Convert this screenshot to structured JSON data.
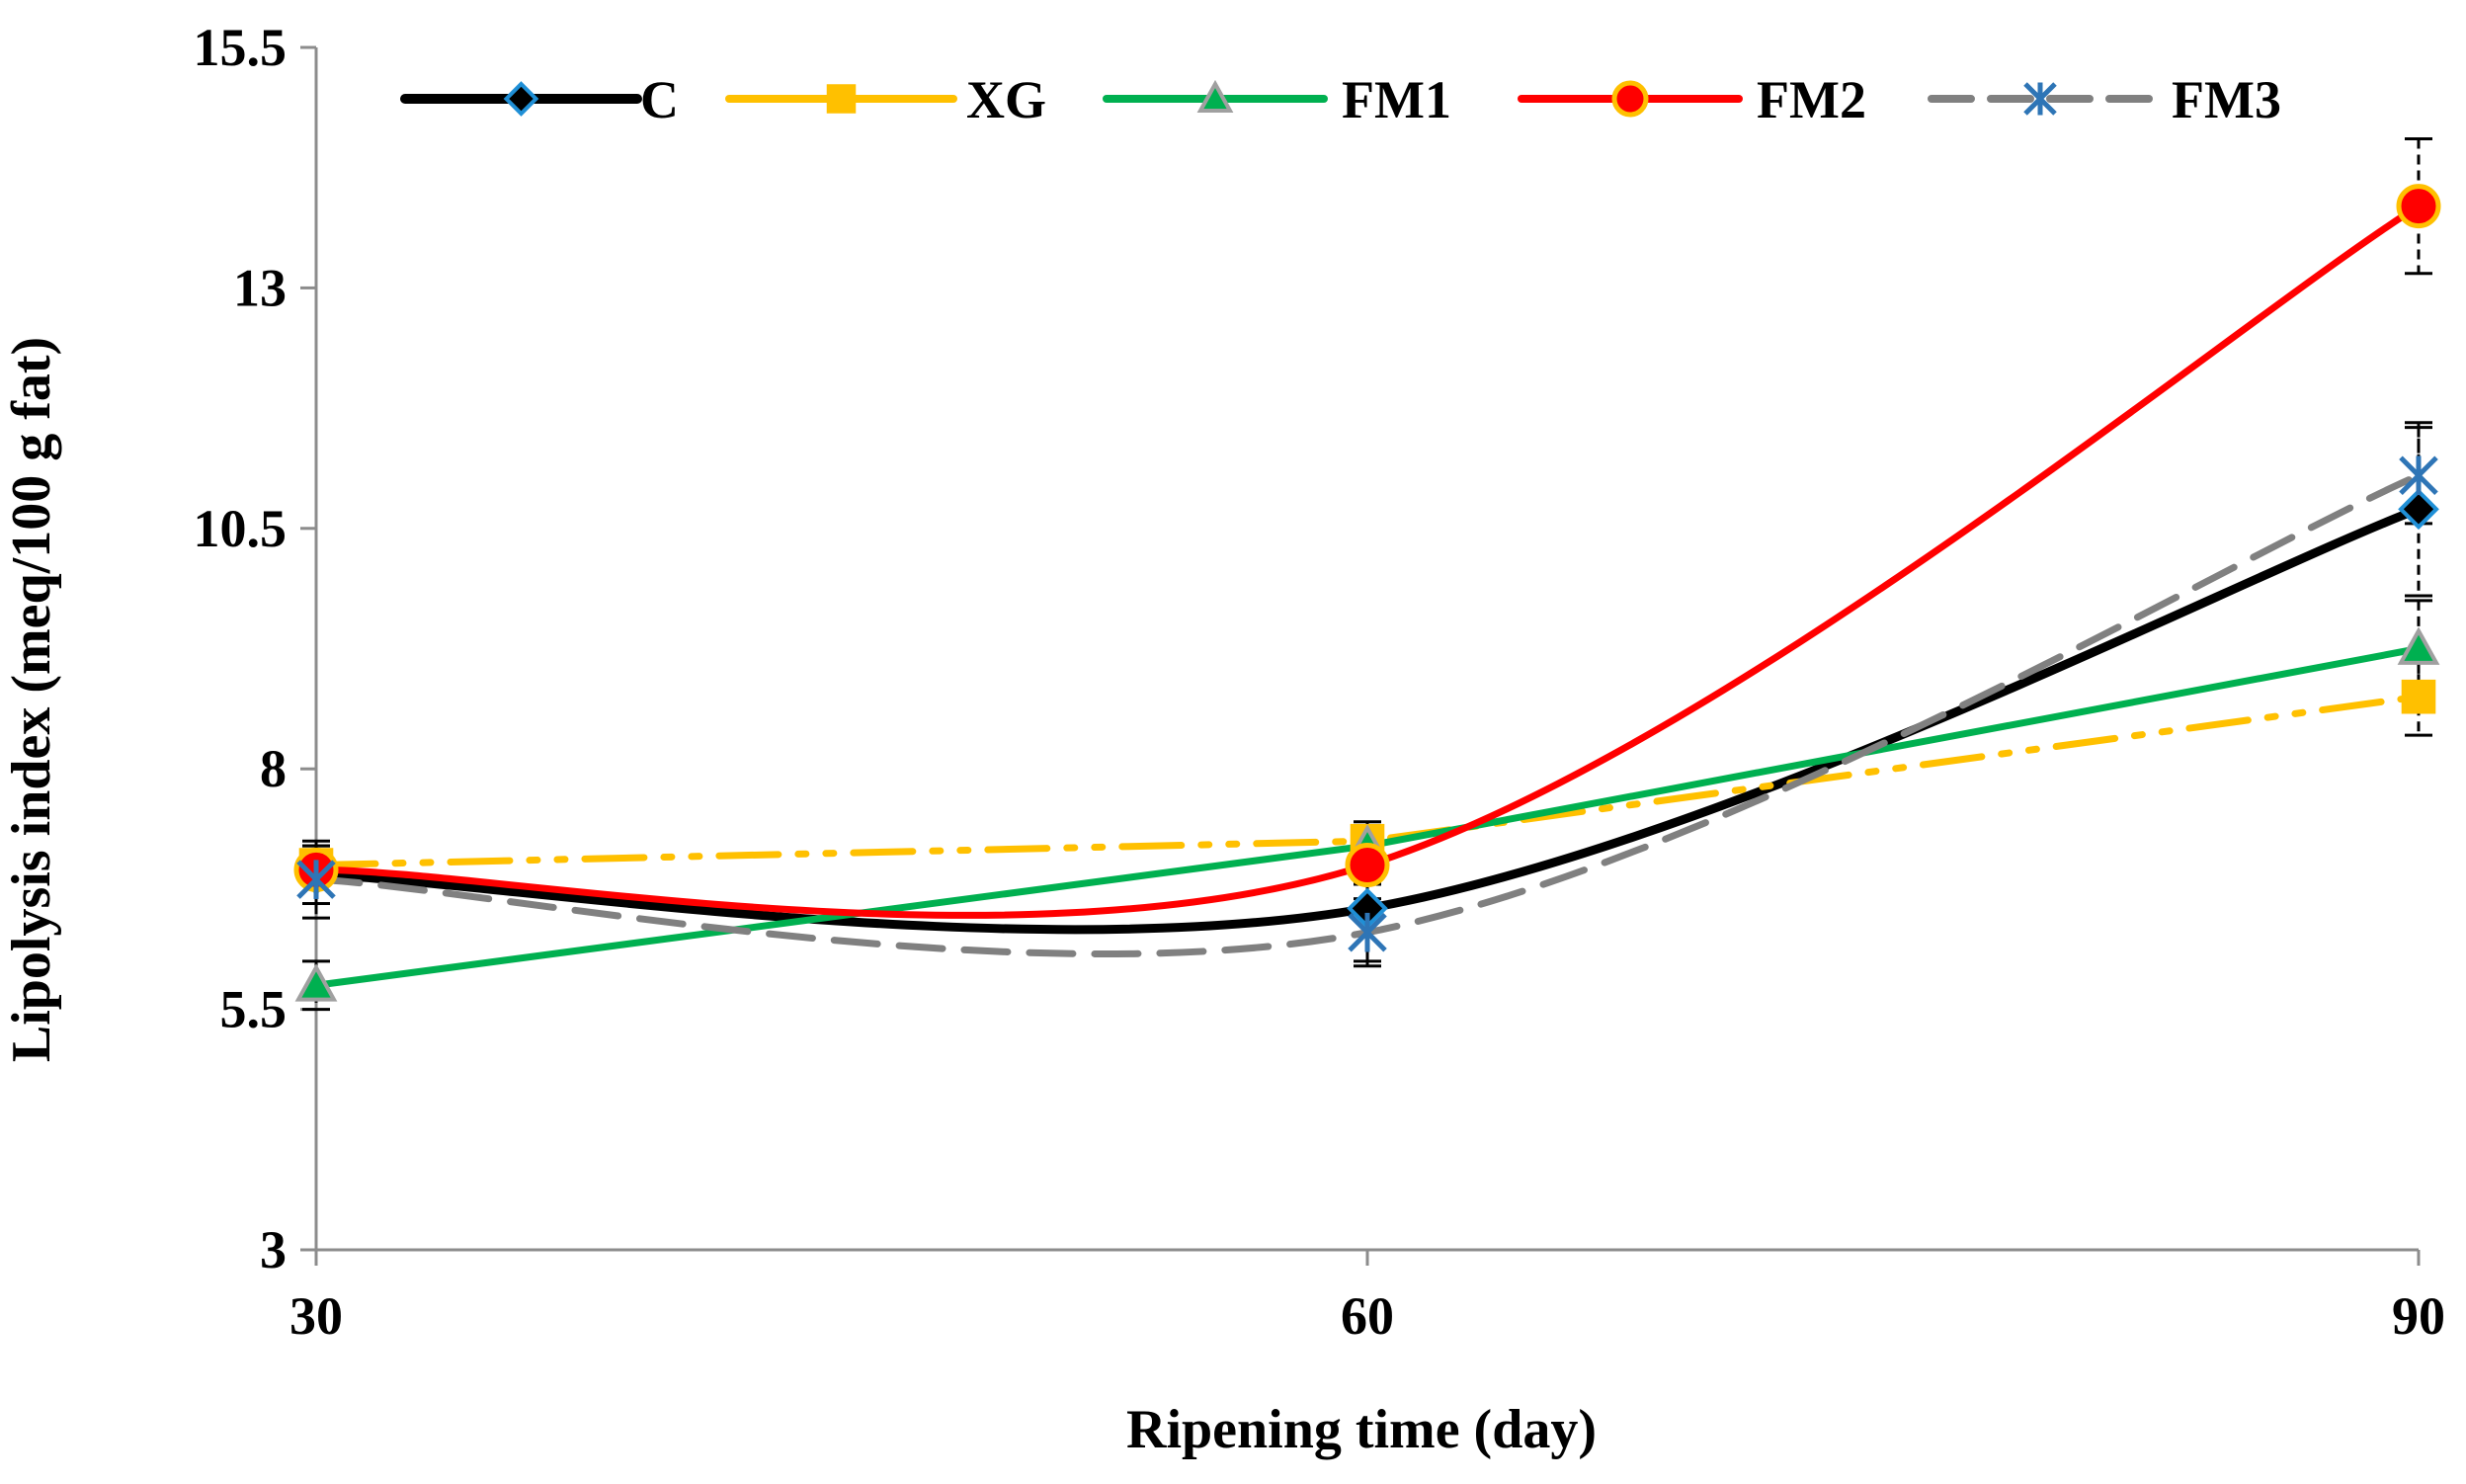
{
  "chart_data": {
    "type": "line",
    "title": "",
    "xlabel": "Ripening time (day)",
    "ylabel": "Lipolysis index (meq/100 g fat)",
    "x": [
      30,
      60,
      90
    ],
    "x_tick_labels": [
      "30",
      "60",
      "90"
    ],
    "xlim": [
      30,
      90
    ],
    "ylim": [
      3,
      15.5
    ],
    "y_ticks": [
      3,
      5.5,
      8,
      10.5,
      13,
      15.5
    ],
    "y_tick_labels": [
      "3",
      "5.5",
      "8",
      "10.5",
      "13",
      "15.5"
    ],
    "grid": false,
    "legend_position": "top",
    "series": [
      {
        "name": "C",
        "values": [
          6.9,
          6.55,
          10.7
        ],
        "errors": [
          0.3,
          0.55,
          0.9
        ],
        "color": "#000000",
        "marker": "diamond",
        "marker_fill": "#000000",
        "marker_stroke": "#1f8fd6",
        "dash": "solid",
        "smooth": true
      },
      {
        "name": "XG",
        "values": [
          7.0,
          7.25,
          8.75
        ],
        "errors": [
          0.2,
          0.2,
          0.4
        ],
        "color": "#ffc000",
        "marker": "square",
        "marker_fill": "#ffc000",
        "marker_stroke": "#ffc000",
        "dash": "dashdotdot",
        "smooth": false
      },
      {
        "name": "FM1",
        "values": [
          5.75,
          7.2,
          9.25
        ],
        "errors": [
          0.25,
          0.2,
          0.5
        ],
        "color": "#00b050",
        "marker": "triangle",
        "marker_fill": "#00b050",
        "marker_stroke": "#a0a0a0",
        "dash": "solid",
        "smooth": false
      },
      {
        "name": "FM2",
        "values": [
          6.95,
          7.0,
          13.85
        ],
        "errors": [
          0.15,
          0.2,
          0.7
        ],
        "color": "#ff0000",
        "marker": "circle",
        "marker_fill": "#ff0000",
        "marker_stroke": "#ffc000",
        "dash": "solid",
        "smooth": true
      },
      {
        "name": "FM3",
        "values": [
          6.85,
          6.3,
          11.05
        ],
        "errors": [
          0.4,
          0.35,
          0.5
        ],
        "color": "#808080",
        "marker": "star",
        "marker_fill": "#2e75b6",
        "marker_stroke": "#2e75b6",
        "dash": "dashed",
        "smooth": true
      }
    ]
  }
}
